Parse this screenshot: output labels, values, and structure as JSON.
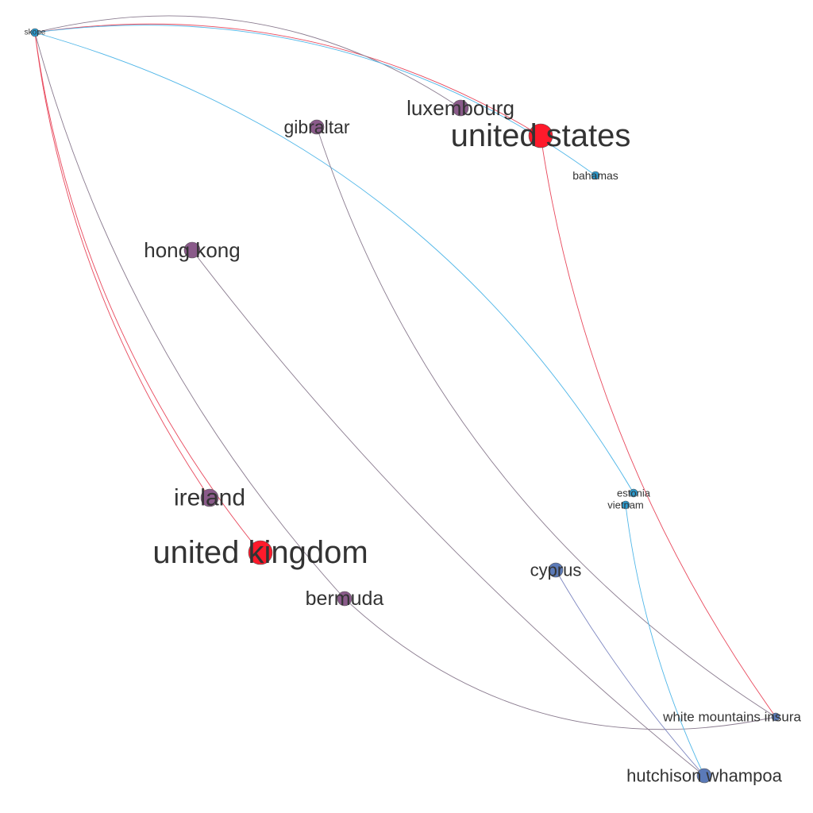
{
  "graph": {
    "type": "network",
    "colors": {
      "red": "#ff1a2b",
      "purple": "#8a5a8a",
      "blue": "#5b7ab8",
      "cyan": "#2a9bd0",
      "edge_red": "#e8485c",
      "edge_grey": "#8a7b8f",
      "edge_cyan": "#4fb6e8",
      "edge_blue": "#7d86c0"
    },
    "nodes": [
      {
        "id": "skope",
        "label": "skope",
        "color": "cyan",
        "size": "xs"
      },
      {
        "id": "luxembourg",
        "label": "luxembourg",
        "color": "purple",
        "size": "m"
      },
      {
        "id": "united-states",
        "label": "united states",
        "color": "red",
        "size": "xl"
      },
      {
        "id": "gibraltar",
        "label": "gibraltar",
        "color": "purple",
        "size": "s"
      },
      {
        "id": "bahamas",
        "label": "bahamas",
        "color": "cyan",
        "size": "xs"
      },
      {
        "id": "hong-kong",
        "label": "hong kong",
        "color": "purple",
        "size": "m"
      },
      {
        "id": "ireland",
        "label": "ireland",
        "color": "purple",
        "size": "l"
      },
      {
        "id": "estonia",
        "label": "estonia",
        "color": "cyan",
        "size": "xs"
      },
      {
        "id": "vietnam",
        "label": "vietnam",
        "color": "cyan",
        "size": "xs"
      },
      {
        "id": "united-kingdom",
        "label": "united kingdom",
        "color": "red",
        "size": "xl"
      },
      {
        "id": "cyprus",
        "label": "cyprus",
        "color": "blue",
        "size": "s"
      },
      {
        "id": "bermuda",
        "label": "bermuda",
        "color": "purple",
        "size": "s"
      },
      {
        "id": "white-mountains",
        "label": "white mountains insura",
        "color": "blue",
        "size": "xs"
      },
      {
        "id": "hutchison-whampoa",
        "label": "hutchison whampoa",
        "color": "blue",
        "size": "s"
      }
    ],
    "edges": [
      {
        "source": "skope",
        "target": "united-states",
        "color": "edge_red"
      },
      {
        "source": "skope",
        "target": "luxembourg",
        "color": "edge_grey"
      },
      {
        "source": "skope",
        "target": "bahamas",
        "color": "edge_cyan"
      },
      {
        "source": "skope",
        "target": "estonia",
        "color": "edge_cyan"
      },
      {
        "source": "skope",
        "target": "ireland",
        "color": "edge_red"
      },
      {
        "source": "skope",
        "target": "united-kingdom",
        "color": "edge_red"
      },
      {
        "source": "skope",
        "target": "bermuda",
        "color": "edge_grey"
      },
      {
        "source": "united-states",
        "target": "white-mountains",
        "color": "edge_red"
      },
      {
        "source": "gibraltar",
        "target": "white-mountains",
        "color": "edge_grey"
      },
      {
        "source": "hong-kong",
        "target": "hutchison-whampoa",
        "color": "edge_grey"
      },
      {
        "source": "bermuda",
        "target": "white-mountains",
        "color": "edge_grey"
      },
      {
        "source": "cyprus",
        "target": "hutchison-whampoa",
        "color": "edge_blue"
      },
      {
        "source": "vietnam",
        "target": "hutchison-whampoa",
        "color": "edge_cyan"
      }
    ]
  }
}
